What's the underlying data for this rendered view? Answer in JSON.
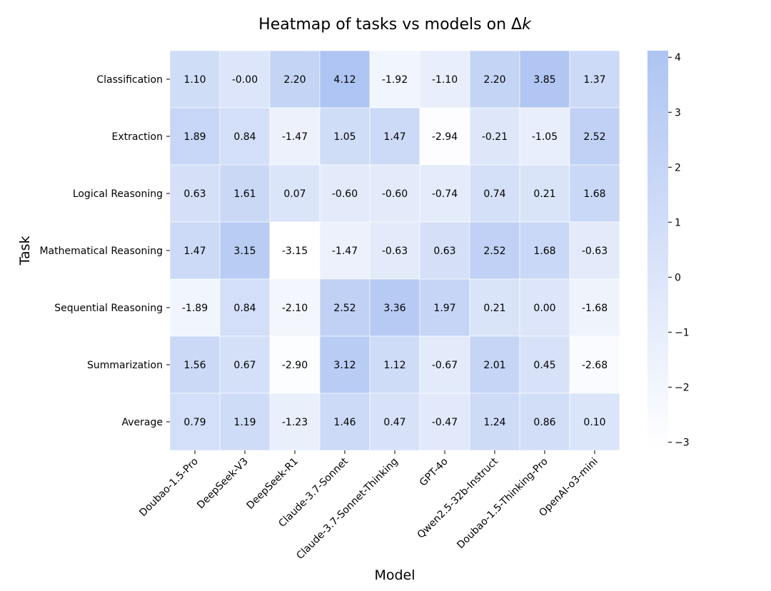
{
  "chart_data": {
    "type": "heatmap",
    "title": "Heatmap of tasks vs models on Δk",
    "title_prefix": "Heatmap of tasks vs models on Δ",
    "title_var": "k",
    "xlabel": "Model",
    "ylabel": "Task",
    "columns": [
      "Doubao-1.5-Pro",
      "DeepSeek-V3",
      "DeepSeek-R1",
      "Claude-3.7-Sonnet",
      "Claude-3.7-Sonnet-Thinking",
      "GPT-4o",
      "Qwen2.5-32b-Instruct",
      "Doubao-1.5-Thinking-Pro",
      "OpenAI-o3-mini"
    ],
    "rows": [
      "Classification",
      "Extraction",
      "Logical Reasoning",
      "Mathematical Reasoning",
      "Sequential Reasoning",
      "Summarization",
      "Average"
    ],
    "values": [
      [
        1.1,
        -0.0,
        2.2,
        4.12,
        -1.92,
        -1.1,
        2.2,
        3.85,
        1.37
      ],
      [
        1.89,
        0.84,
        -1.47,
        1.05,
        1.47,
        -2.94,
        -0.21,
        -1.05,
        2.52
      ],
      [
        0.63,
        1.61,
        0.07,
        -0.6,
        -0.6,
        -0.74,
        0.74,
        0.21,
        1.68
      ],
      [
        1.47,
        3.15,
        -3.15,
        -1.47,
        -0.63,
        0.63,
        2.52,
        1.68,
        -0.63
      ],
      [
        -1.89,
        0.84,
        -2.1,
        2.52,
        3.36,
        1.97,
        0.21,
        0.0,
        -1.68
      ],
      [
        1.56,
        0.67,
        -2.9,
        3.12,
        1.12,
        -0.67,
        2.01,
        0.45,
        -2.68
      ],
      [
        0.79,
        1.19,
        -1.23,
        1.46,
        0.47,
        -0.47,
        1.24,
        0.86,
        0.1
      ]
    ],
    "cell_labels": [
      [
        "1.10",
        "-0.00",
        "2.20",
        "4.12",
        "-1.92",
        "-1.10",
        "2.20",
        "3.85",
        "1.37"
      ],
      [
        "1.89",
        "0.84",
        "-1.47",
        "1.05",
        "1.47",
        "-2.94",
        "-0.21",
        "-1.05",
        "2.52"
      ],
      [
        "0.63",
        "1.61",
        "0.07",
        "-0.60",
        "-0.60",
        "-0.74",
        "0.74",
        "0.21",
        "1.68"
      ],
      [
        "1.47",
        "3.15",
        "-3.15",
        "-1.47",
        "-0.63",
        "0.63",
        "2.52",
        "1.68",
        "-0.63"
      ],
      [
        "-1.89",
        "0.84",
        "-2.10",
        "2.52",
        "3.36",
        "1.97",
        "0.21",
        "0.00",
        "-1.68"
      ],
      [
        "1.56",
        "0.67",
        "-2.90",
        "3.12",
        "1.12",
        "-0.67",
        "2.01",
        "0.45",
        "-2.68"
      ],
      [
        "0.79",
        "1.19",
        "-1.23",
        "1.46",
        "0.47",
        "-0.47",
        "1.24",
        "0.86",
        "0.10"
      ]
    ],
    "vmin": -3.15,
    "vmax": 4.12,
    "colorbar_ticks": [
      4,
      3,
      2,
      1,
      0,
      -1,
      -2,
      -3
    ],
    "colorbar_tick_labels": [
      "4",
      "3",
      "2",
      "1",
      "0",
      "−1",
      "−2",
      "−3"
    ],
    "colormap": {
      "low": "#ffffff",
      "high": "#aec4f2"
    },
    "legend": "colorbar-right"
  }
}
